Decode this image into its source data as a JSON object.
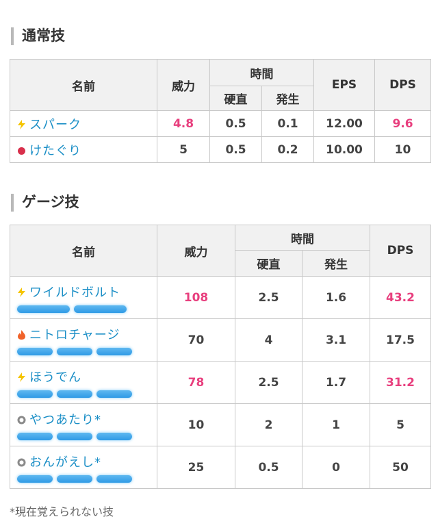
{
  "normal": {
    "title": "通常技",
    "headers": {
      "name": "名前",
      "power": "威力",
      "time": "時間",
      "cooldown": "硬直",
      "startup": "発生",
      "eps": "EPS",
      "dps": "DPS"
    },
    "rows": [
      {
        "icon": "electric-bolt-icon",
        "name": "スパーク",
        "power": "4.8",
        "cooldown": "0.5",
        "startup": "0.1",
        "eps": "12.00",
        "dps": "9.6"
      },
      {
        "icon": "fighting-fist-icon",
        "name": "けたぐり",
        "power": "5",
        "cooldown": "0.5",
        "startup": "0.2",
        "eps": "10.00",
        "dps": "10"
      }
    ]
  },
  "charge": {
    "title": "ゲージ技",
    "headers": {
      "name": "名前",
      "power": "威力",
      "time": "時間",
      "cooldown": "硬直",
      "startup": "発生",
      "dps": "DPS"
    },
    "rows": [
      {
        "icon": "electric-bolt-icon",
        "name": "ワイルドボルト",
        "gauges": 2,
        "power": "108",
        "cooldown": "2.5",
        "startup": "1.6",
        "dps": "43.2"
      },
      {
        "icon": "fire-flame-icon",
        "name": "ニトロチャージ",
        "gauges": 3,
        "power": "70",
        "cooldown": "4",
        "startup": "3.1",
        "dps": "17.5"
      },
      {
        "icon": "electric-bolt-icon",
        "name": "ほうでん",
        "gauges": 3,
        "power": "78",
        "cooldown": "2.5",
        "startup": "1.7",
        "dps": "31.2"
      },
      {
        "icon": "normal-ring-icon",
        "name": "やつあたり*",
        "gauges": 3,
        "power": "10",
        "cooldown": "2",
        "startup": "1",
        "dps": "5"
      },
      {
        "icon": "normal-ring-icon",
        "name": "おんがえし*",
        "gauges": 3,
        "power": "25",
        "cooldown": "0.5",
        "startup": "0",
        "dps": "50"
      }
    ]
  },
  "footnote": "*現在覚えられない技",
  "colors": {
    "highlight": "#e83f7e",
    "link": "#1a8ec6",
    "gauge": "#3aa0e8",
    "electric": "#f5c400",
    "fighting": "#d8304c",
    "fire": "#f0632a",
    "normal": "#8a8a8a"
  }
}
